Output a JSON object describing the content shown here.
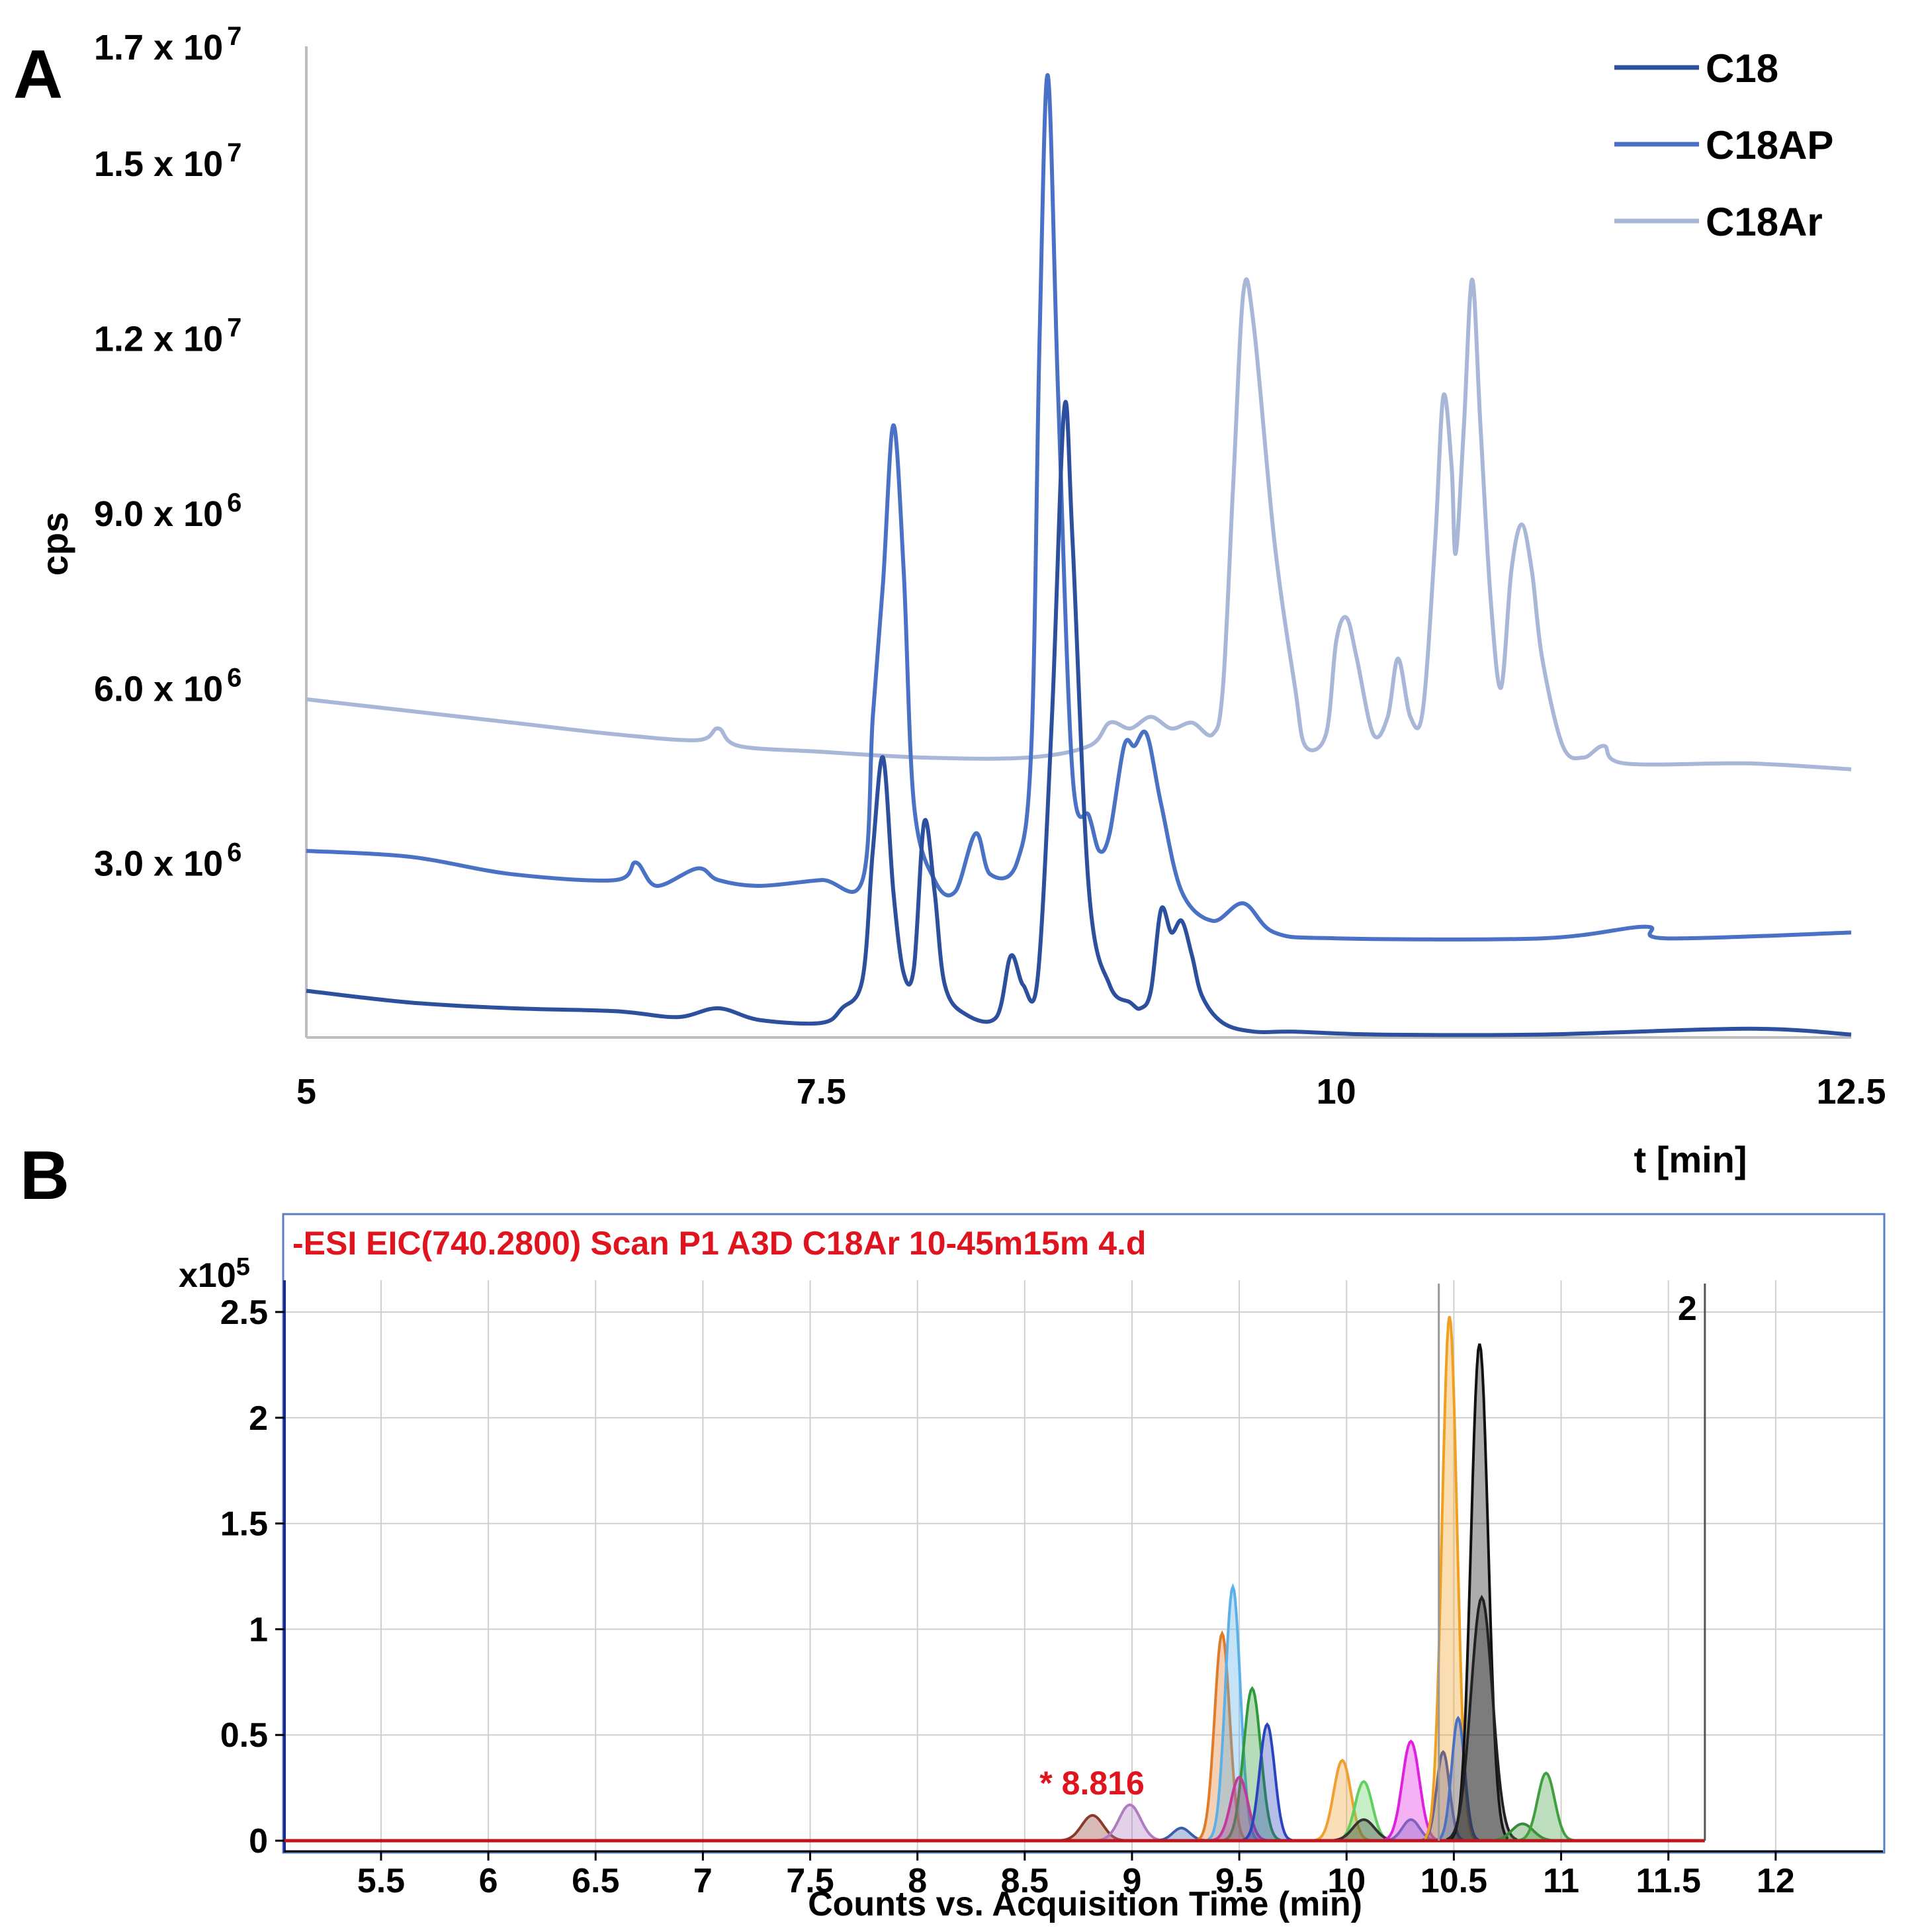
{
  "chart_data": [
    {
      "panel": "A",
      "type": "line",
      "ylabel": "cps",
      "xlabel": "t [min]",
      "xlim": [
        5,
        12.5
      ],
      "ylim": [
        0,
        17000000
      ],
      "x_ticks": [
        {
          "value": 5,
          "label": "5"
        },
        {
          "value": 7.5,
          "label": "7.5"
        },
        {
          "value": 10,
          "label": "10"
        },
        {
          "value": 12.5,
          "label": "12.5"
        }
      ],
      "y_ticks": [
        {
          "value": 3000000,
          "mantissa": "3.0 x 10",
          "exp": "6"
        },
        {
          "value": 6000000,
          "mantissa": "6.0 x 10",
          "exp": "6"
        },
        {
          "value": 9000000,
          "mantissa": "9.0 x 10",
          "exp": "6"
        },
        {
          "value": 12000000,
          "mantissa": "1.2 x 10",
          "exp": "7"
        },
        {
          "value": 15000000,
          "mantissa": "1.5 x 10",
          "exp": "7"
        },
        {
          "value": 17000000,
          "mantissa": "1.7 x 10",
          "exp": "7"
        }
      ],
      "grid": false,
      "legend_position": "top-right",
      "series": [
        {
          "name": "C18",
          "color": "#2c4f9e",
          "points": [
            [
              5.0,
              800000
            ],
            [
              5.5,
              600000
            ],
            [
              6.0,
              500000
            ],
            [
              6.5,
              450000
            ],
            [
              6.8,
              350000
            ],
            [
              7.0,
              500000
            ],
            [
              7.2,
              300000
            ],
            [
              7.5,
              250000
            ],
            [
              7.6,
              500000
            ],
            [
              7.7,
              1000000
            ],
            [
              7.75,
              3200000
            ],
            [
              7.8,
              4800000
            ],
            [
              7.85,
              2500000
            ],
            [
              7.9,
              1100000
            ],
            [
              7.95,
              1200000
            ],
            [
              8.0,
              3700000
            ],
            [
              8.05,
              2500000
            ],
            [
              8.1,
              900000
            ],
            [
              8.2,
              400000
            ],
            [
              8.35,
              350000
            ],
            [
              8.42,
              1400000
            ],
            [
              8.48,
              900000
            ],
            [
              8.55,
              1000000
            ],
            [
              8.62,
              5500000
            ],
            [
              8.68,
              10800000
            ],
            [
              8.72,
              8500000
            ],
            [
              8.8,
              2500000
            ],
            [
              8.9,
              900000
            ],
            [
              9.0,
              600000
            ],
            [
              9.05,
              500000
            ],
            [
              9.1,
              800000
            ],
            [
              9.15,
              2200000
            ],
            [
              9.2,
              1800000
            ],
            [
              9.25,
              2000000
            ],
            [
              9.3,
              1400000
            ],
            [
              9.35,
              700000
            ],
            [
              9.45,
              250000
            ],
            [
              9.6,
              100000
            ],
            [
              9.8,
              100000
            ],
            [
              10.2,
              50000
            ],
            [
              11.0,
              50000
            ],
            [
              12.0,
              150000
            ],
            [
              12.5,
              50000
            ]
          ]
        },
        {
          "name": "C18AP",
          "color": "#4a72c4",
          "points": [
            [
              5.0,
              3200000
            ],
            [
              5.5,
              3100000
            ],
            [
              6.0,
              2800000
            ],
            [
              6.5,
              2700000
            ],
            [
              6.6,
              3000000
            ],
            [
              6.7,
              2600000
            ],
            [
              6.9,
              2900000
            ],
            [
              7.0,
              2700000
            ],
            [
              7.2,
              2600000
            ],
            [
              7.5,
              2700000
            ],
            [
              7.7,
              2700000
            ],
            [
              7.75,
              5500000
            ],
            [
              7.8,
              7800000
            ],
            [
              7.85,
              10500000
            ],
            [
              7.9,
              8000000
            ],
            [
              7.95,
              4000000
            ],
            [
              8.05,
              2700000
            ],
            [
              8.15,
              2500000
            ],
            [
              8.25,
              3500000
            ],
            [
              8.32,
              2800000
            ],
            [
              8.45,
              3000000
            ],
            [
              8.52,
              5000000
            ],
            [
              8.56,
              12000000
            ],
            [
              8.6,
              16500000
            ],
            [
              8.65,
              11000000
            ],
            [
              8.72,
              4500000
            ],
            [
              8.8,
              3800000
            ],
            [
              8.85,
              3200000
            ],
            [
              8.9,
              3500000
            ],
            [
              8.97,
              5000000
            ],
            [
              9.02,
              5000000
            ],
            [
              9.08,
              5200000
            ],
            [
              9.15,
              4000000
            ],
            [
              9.25,
              2500000
            ],
            [
              9.4,
              2000000
            ],
            [
              9.55,
              2300000
            ],
            [
              9.7,
              1800000
            ],
            [
              10.0,
              1700000
            ],
            [
              11.0,
              1700000
            ],
            [
              11.5,
              1900000
            ],
            [
              11.6,
              1700000
            ],
            [
              12.5,
              1800000
            ]
          ]
        },
        {
          "name": "C18Ar",
          "color": "#a8b7d8",
          "points": [
            [
              5.0,
              5800000
            ],
            [
              5.5,
              5600000
            ],
            [
              6.0,
              5400000
            ],
            [
              6.5,
              5200000
            ],
            [
              6.9,
              5100000
            ],
            [
              7.0,
              5300000
            ],
            [
              7.1,
              5000000
            ],
            [
              7.5,
              4900000
            ],
            [
              8.0,
              4800000
            ],
            [
              8.5,
              4800000
            ],
            [
              8.8,
              5000000
            ],
            [
              8.9,
              5400000
            ],
            [
              9.0,
              5300000
            ],
            [
              9.1,
              5500000
            ],
            [
              9.2,
              5300000
            ],
            [
              9.3,
              5400000
            ],
            [
              9.4,
              5200000
            ],
            [
              9.45,
              6000000
            ],
            [
              9.5,
              9500000
            ],
            [
              9.55,
              12800000
            ],
            [
              9.6,
              12200000
            ],
            [
              9.7,
              8500000
            ],
            [
              9.8,
              6000000
            ],
            [
              9.85,
              5000000
            ],
            [
              9.95,
              5200000
            ],
            [
              10.0,
              6800000
            ],
            [
              10.05,
              7200000
            ],
            [
              10.1,
              6500000
            ],
            [
              10.18,
              5200000
            ],
            [
              10.25,
              5500000
            ],
            [
              10.3,
              6500000
            ],
            [
              10.36,
              5500000
            ],
            [
              10.42,
              5600000
            ],
            [
              10.48,
              8500000
            ],
            [
              10.52,
              11000000
            ],
            [
              10.56,
              9800000
            ],
            [
              10.58,
              8300000
            ],
            [
              10.62,
              10500000
            ],
            [
              10.66,
              13000000
            ],
            [
              10.7,
              10500000
            ],
            [
              10.75,
              7500000
            ],
            [
              10.8,
              6000000
            ],
            [
              10.85,
              8000000
            ],
            [
              10.9,
              8800000
            ],
            [
              10.95,
              8000000
            ],
            [
              11.0,
              6500000
            ],
            [
              11.1,
              5000000
            ],
            [
              11.2,
              4800000
            ],
            [
              11.3,
              5000000
            ],
            [
              11.4,
              4700000
            ],
            [
              12.0,
              4700000
            ],
            [
              12.5,
              4600000
            ]
          ]
        }
      ]
    },
    {
      "panel": "B",
      "type": "area",
      "title": "-ESI EIC(740.2800) Scan P1 A3D C18Ar 10-45m15m 4.d",
      "xlabel": "Counts vs. Acquisition Time (min)",
      "y_multiplier_label": "x10",
      "y_multiplier_exp": "5",
      "xlim": [
        5.05,
        12.5
      ],
      "ylim": [
        -0.05,
        2.65
      ],
      "x_ticks": [
        "5.5",
        "6",
        "6.5",
        "7",
        "7.5",
        "8",
        "8.5",
        "9",
        "9.5",
        "10",
        "10.5",
        "11",
        "11.5",
        "12"
      ],
      "y_ticks": [
        "0",
        "0.5",
        "1",
        "1.5",
        "2",
        "2.5"
      ],
      "grid": true,
      "annotation_text": "* 8.816",
      "annotation_x": 8.816,
      "marker_label": "2",
      "marker_x": 11.67,
      "title_color": "#e0141e",
      "peaks": [
        {
          "color": "#8b3a2a",
          "t": 8.816,
          "h": 0.12,
          "w": 0.05
        },
        {
          "color": "#b07cc0",
          "t": 8.99,
          "h": 0.17,
          "w": 0.05
        },
        {
          "color": "#3a5fa8",
          "t": 9.23,
          "h": 0.06,
          "w": 0.04
        },
        {
          "color": "#e07b2a",
          "t": 9.42,
          "h": 0.98,
          "w": 0.035
        },
        {
          "color": "#5ab0e8",
          "t": 9.47,
          "h": 1.2,
          "w": 0.035
        },
        {
          "color": "#2e9a3a",
          "t": 9.56,
          "h": 0.72,
          "w": 0.04
        },
        {
          "color": "#c03a9a",
          "t": 9.5,
          "h": 0.3,
          "w": 0.04
        },
        {
          "color": "#2a44c0",
          "t": 9.63,
          "h": 0.55,
          "w": 0.035
        },
        {
          "color": "#f0a030",
          "t": 9.98,
          "h": 0.38,
          "w": 0.04
        },
        {
          "color": "#60d060",
          "t": 10.08,
          "h": 0.28,
          "w": 0.04
        },
        {
          "color": "#333333",
          "t": 10.08,
          "h": 0.1,
          "w": 0.05
        },
        {
          "color": "#e020e0",
          "t": 10.3,
          "h": 0.47,
          "w": 0.04
        },
        {
          "color": "#8060c0",
          "t": 10.3,
          "h": 0.1,
          "w": 0.04
        },
        {
          "color": "#2a44c0",
          "t": 10.45,
          "h": 0.42,
          "w": 0.03
        },
        {
          "color": "#f0a020",
          "t": 10.48,
          "h": 2.48,
          "w": 0.035
        },
        {
          "color": "#4a72c4",
          "t": 10.52,
          "h": 0.58,
          "w": 0.03
        },
        {
          "color": "#111111",
          "t": 10.62,
          "h": 2.35,
          "w": 0.04
        },
        {
          "color": "#222222",
          "t": 10.63,
          "h": 1.15,
          "w": 0.05
        },
        {
          "color": "#3a8a3a",
          "t": 10.82,
          "h": 0.08,
          "w": 0.05
        },
        {
          "color": "#40a040",
          "t": 10.93,
          "h": 0.32,
          "w": 0.04
        }
      ]
    }
  ]
}
